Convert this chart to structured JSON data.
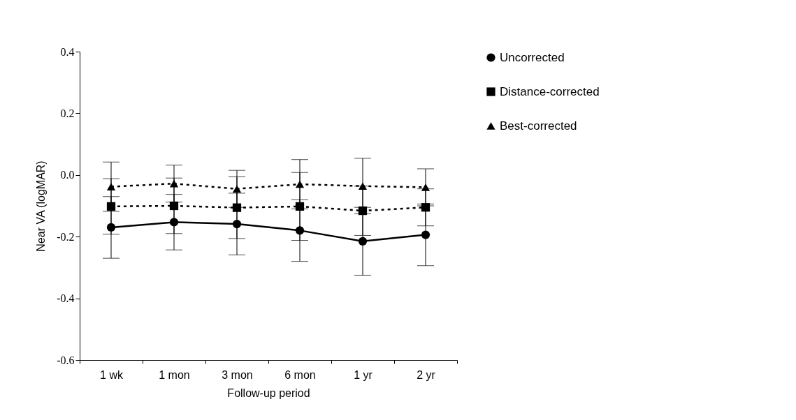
{
  "chart_data": {
    "type": "line",
    "xlabel": "Follow-up period",
    "ylabel": "Near VA  (logMAR)",
    "categories": [
      "1 wk",
      "1 mon",
      "3 mon",
      "6 mon",
      "1 yr",
      "2 yr"
    ],
    "ylim": [
      -0.6,
      0.4
    ],
    "yticks": [
      {
        "value": -0.6,
        "label": "-0.6"
      },
      {
        "value": -0.4,
        "label": "-0.4"
      },
      {
        "value": -0.2,
        "label": "-0.2"
      },
      {
        "value": 0,
        "label": "0.0"
      },
      {
        "value": 0.2,
        "label": "0.2"
      },
      {
        "value": 0.4,
        "label": "0.4"
      }
    ],
    "legend": "right",
    "grid": false,
    "series": [
      {
        "name": "Uncorrected",
        "color": "#000000",
        "marker": "circle",
        "line_style": "solid",
        "values": [
          -0.17,
          -0.153,
          -0.159,
          -0.18,
          -0.215,
          -0.194
        ],
        "errors": [
          0.1,
          0.09,
          0.1,
          0.1,
          0.11,
          0.1
        ]
      },
      {
        "name": "Distance-corrected",
        "color": "#000000",
        "marker": "square",
        "line_style": "dotted",
        "values": [
          -0.102,
          -0.1,
          -0.106,
          -0.102,
          -0.116,
          -0.105
        ],
        "errors": [
          0.09,
          0.09,
          0.1,
          0.11,
          0.08,
          0.06
        ]
      },
      {
        "name": "Best-corrected",
        "color": "#000000",
        "marker": "triangle",
        "line_style": "dotted",
        "values": [
          -0.038,
          -0.028,
          -0.045,
          -0.03,
          -0.036,
          -0.04
        ],
        "errors": [
          0.08,
          0.06,
          0.06,
          0.08,
          0.09,
          0.06
        ]
      }
    ]
  }
}
